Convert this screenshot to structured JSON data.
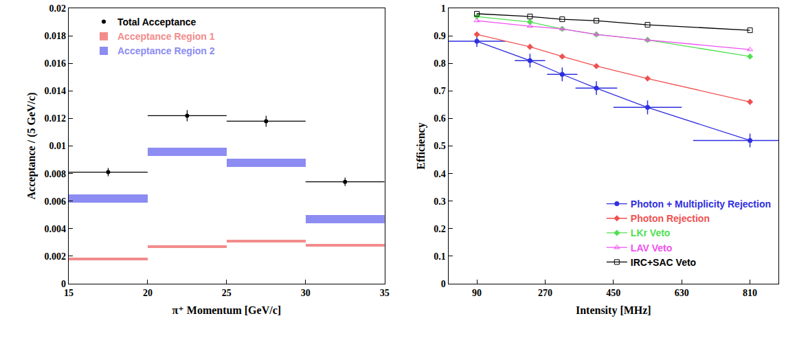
{
  "chart_data": [
    {
      "type": "bar",
      "x_label": "π⁺ Momentum [GeV/c]",
      "y_label": "Acceptance / (5 GeV/c)",
      "bins": [
        15,
        20,
        25,
        30,
        35
      ],
      "xlim": [
        15,
        35
      ],
      "xticks": [
        15,
        20,
        25,
        30,
        35
      ],
      "ylim": [
        0,
        0.02
      ],
      "yticks": [
        0,
        0.002,
        0.004,
        0.006,
        0.008,
        0.01,
        0.012,
        0.014,
        0.016,
        0.018,
        0.02
      ],
      "legend": "upper left",
      "series": [
        {
          "name": "Total Acceptance",
          "type": "scatter",
          "marker": "circle",
          "color": "#000000",
          "values": [
            0.0081,
            0.0122,
            0.0118,
            0.0074
          ],
          "errors": [
            0.0003,
            0.0004,
            0.0004,
            0.0003
          ]
        },
        {
          "name": "Acceptance Region 1",
          "type": "band",
          "color": "#f28c8c",
          "values": [
            0.0018,
            0.0027,
            0.0031,
            0.0028
          ],
          "errors": [
            0.0001,
            0.0001,
            0.0001,
            0.0001
          ]
        },
        {
          "name": "Acceptance Region 2",
          "type": "band",
          "color": "#8c8cf2",
          "values": [
            0.0062,
            0.0096,
            0.0088,
            0.0047
          ],
          "errors": [
            0.0003,
            0.0003,
            0.0003,
            0.0003
          ]
        }
      ]
    },
    {
      "type": "line",
      "x_label": "Intensity [MHz]",
      "y_label": "Efficiency",
      "x": [
        90,
        230,
        315,
        405,
        540,
        810
      ],
      "xlim": [
        15,
        885
      ],
      "xticks": [
        90,
        270,
        450,
        630,
        810
      ],
      "ylim": [
        0,
        1
      ],
      "yticks": [
        0,
        0.1,
        0.2,
        0.3,
        0.4,
        0.5,
        0.6,
        0.7,
        0.8,
        0.9,
        1
      ],
      "legend": "lower right",
      "series": [
        {
          "name": "Photon + Multiplicity Rejection",
          "color": "#2f2fe0",
          "marker": "circle",
          "values": [
            0.88,
            0.81,
            0.76,
            0.71,
            0.64,
            0.52
          ],
          "errors": [
            0.02,
            0.025,
            0.025,
            0.025,
            0.025,
            0.025
          ],
          "x_errors": [
            75,
            40,
            40,
            55,
            90,
            150
          ]
        },
        {
          "name": "Photon Rejection",
          "color": "#f05050",
          "marker": "diamond",
          "values": [
            0.905,
            0.86,
            0.825,
            0.79,
            0.745,
            0.66
          ]
        },
        {
          "name": "LKr Veto",
          "color": "#50e050",
          "marker": "diamond",
          "values": [
            0.97,
            0.95,
            0.925,
            0.905,
            0.885,
            0.825
          ]
        },
        {
          "name": "LAV Veto",
          "color": "#f050f0",
          "marker": "triangle-up-open",
          "values": [
            0.955,
            0.935,
            0.925,
            0.905,
            0.885,
            0.85
          ]
        },
        {
          "name": "IRC+SAC Veto",
          "color": "#000000",
          "marker": "square-open",
          "values": [
            0.98,
            0.97,
            0.96,
            0.955,
            0.94,
            0.92
          ]
        }
      ]
    }
  ]
}
